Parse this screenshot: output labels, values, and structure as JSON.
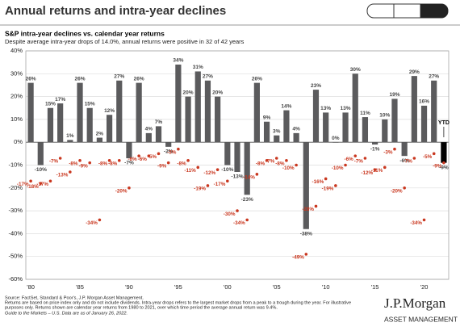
{
  "header": {
    "title": "Annual returns and intra-year declines"
  },
  "chart_data": {
    "type": "bar",
    "title": "S&P intra-year declines vs. calendar year returns",
    "subtitle": "Despite average intra-year drops of 14.0%, annual returns were positive in 32 of 42 years",
    "annotation": "YTD",
    "categories": [
      "'80",
      null,
      null,
      null,
      null,
      "'85",
      null,
      null,
      null,
      null,
      "'90",
      null,
      null,
      null,
      null,
      "'95",
      null,
      null,
      null,
      null,
      "'00",
      null,
      null,
      null,
      null,
      "'05",
      null,
      null,
      null,
      null,
      "'10",
      null,
      null,
      null,
      null,
      "'15",
      null,
      null,
      null,
      null,
      "'20",
      null,
      null
    ],
    "series": [
      {
        "mark": "bar",
        "color": "#5b5b5d",
        "ytd_color": "#000000",
        "values": [
          26,
          -10,
          15,
          17,
          1,
          26,
          15,
          2,
          12,
          27,
          -7,
          26,
          4,
          7,
          -2,
          34,
          20,
          31,
          27,
          20,
          -10,
          -13,
          -23,
          26,
          9,
          3,
          14,
          4,
          -38,
          23,
          13,
          0,
          13,
          30,
          11,
          -1,
          10,
          19,
          -6,
          29,
          16,
          27,
          -9
        ],
        "value_labels": [
          "26%",
          "-10%",
          "15%",
          "17%",
          "1%",
          "26%",
          "15%",
          "2%",
          "12%",
          "27%",
          "-7%",
          "26%",
          "4%",
          "7%",
          "-2%",
          "34%",
          "20%",
          "31%",
          "27%",
          "20%",
          "-10%",
          "-13%",
          "-23%",
          "26%",
          "9%",
          "3%",
          "14%",
          "4%",
          "-38%",
          "23%",
          "13%",
          "0%",
          "13%",
          "30%",
          "11%",
          "-1%",
          "10%",
          "19%",
          "-6%",
          "29%",
          "16%",
          "27%",
          "-9%"
        ]
      },
      {
        "mark": "dot",
        "color": "#c9371f",
        "values": [
          -17,
          -18,
          -17,
          -7,
          -13,
          -8,
          -9,
          -34,
          -8,
          -8,
          -20,
          -6,
          -6,
          -5,
          -9,
          -3,
          -8,
          -11,
          -19,
          -12,
          -17,
          -30,
          -34,
          -14,
          -8,
          -7,
          -8,
          -10,
          -49,
          -28,
          -16,
          -19,
          -10,
          -6,
          -7,
          -12,
          -11,
          -3,
          -20,
          -7,
          -34,
          -5,
          -9
        ],
        "value_labels": [
          "-17%",
          "-18%",
          "-17%",
          "-7%",
          "-13%",
          "-8%",
          "-9%",
          "-34%",
          "-8%",
          "-8%",
          "-20%",
          "-6%",
          "-6%",
          "-5%",
          "-9%",
          "-3%",
          "-8%",
          "-11%",
          "-19%",
          "-12%",
          "-17%",
          "-30%",
          "-34%",
          "-14%",
          "-8%",
          "-7%",
          "-8%",
          "-10%",
          "-49%",
          "-28%",
          "-16%",
          "-19%",
          "-10%",
          "-6%",
          "-7%",
          "-12%",
          "-11%",
          "-3%",
          "-20%",
          "-7%",
          "-34%",
          "-5%",
          "-9%"
        ]
      }
    ],
    "ylim": [
      -60,
      40
    ],
    "yticks": [
      {
        "value": -60,
        "label": "-60%"
      },
      {
        "value": -50,
        "label": "-50%"
      },
      {
        "value": -40,
        "label": "-40%"
      },
      {
        "value": -30,
        "label": "-30%"
      },
      {
        "value": -20,
        "label": "-20%"
      },
      {
        "value": -10,
        "label": "-10%"
      },
      {
        "value": 0,
        "label": "0%"
      },
      {
        "value": 10,
        "label": "10%"
      },
      {
        "value": 20,
        "label": "20%"
      },
      {
        "value": 30,
        "label": "30%"
      },
      {
        "value": 40,
        "label": "40%"
      }
    ],
    "grid": true
  },
  "footer": {
    "notes": [
      "Source: FactSet, Standard & Poor's, J.P. Morgan Asset Management.",
      "Returns are based on price index only and do not include dividends. Intra-year drops refers to the largest market drops from a peak to a trough during the year. For illustrative",
      "purposes only. Returns shown are calendar year returns from 1980 to 2021, over which time period the average annual return was 9.4%.",
      "Guide to the Markets – U.S. Data are as of January 26, 2022."
    ],
    "logo": "J.P.Morgan",
    "logo_sub": "ASSET MANAGEMENT"
  }
}
